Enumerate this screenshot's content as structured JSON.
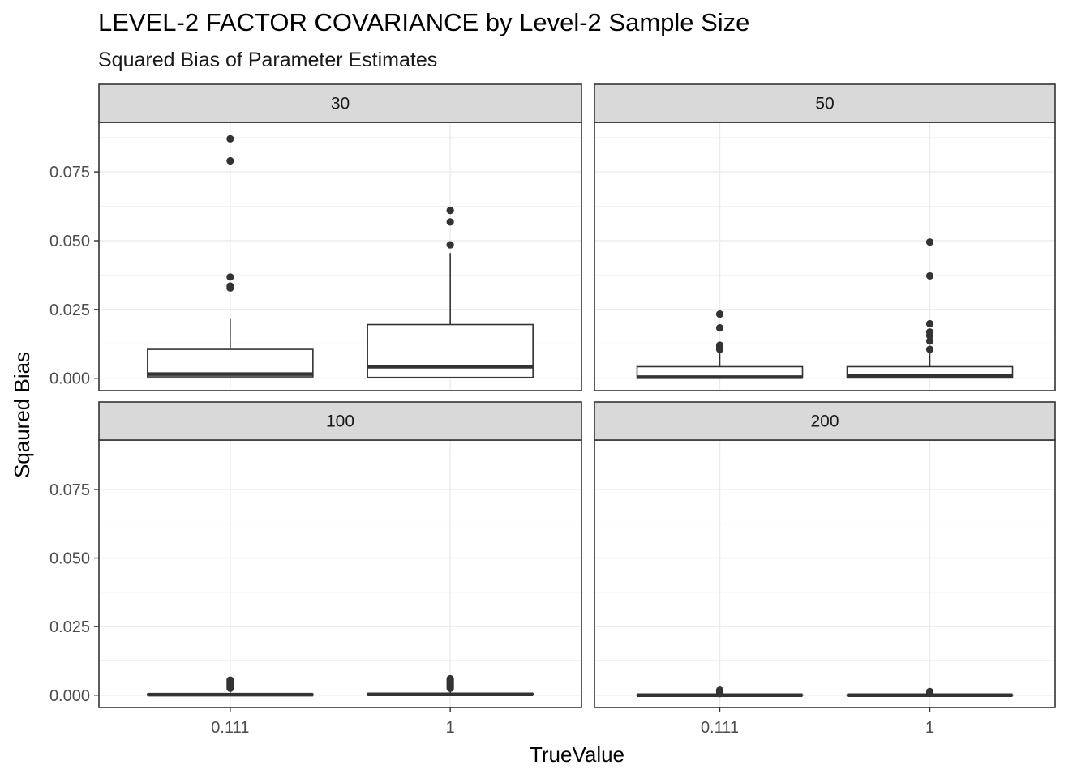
{
  "title": "LEVEL-2 FACTOR COVARIANCE by Level-2 Sample Size",
  "subtitle": "Squared Bias of Parameter Estimates",
  "chart_data": {
    "type": "box",
    "title": "LEVEL-2 FACTOR COVARIANCE by Level-2 Sample Size",
    "subtitle": "Squared Bias of Parameter Estimates",
    "xlabel": "TrueValue",
    "ylabel": "Sqaured Bias",
    "categories": [
      "0.111",
      "1"
    ],
    "ylim": [
      -0.0045,
      0.093
    ],
    "yticks": [
      0.0,
      0.025,
      0.05,
      0.075
    ],
    "ytick_labels": [
      "0.000",
      "0.025",
      "0.050",
      "0.075"
    ],
    "grid": true,
    "facets": [
      {
        "label": "30",
        "boxes": [
          {
            "category": "0.111",
            "min": 0.0,
            "q1": 0.0005,
            "median": 0.0015,
            "q3": 0.0105,
            "max": 0.0215,
            "outliers": [
              0.0328,
              0.0335,
              0.0368,
              0.079,
              0.087
            ]
          },
          {
            "category": "1",
            "min": 0.0,
            "q1": 0.0003,
            "median": 0.0042,
            "q3": 0.0195,
            "max": 0.0455,
            "outliers": [
              0.0485,
              0.0568,
              0.061
            ]
          }
        ]
      },
      {
        "label": "50",
        "boxes": [
          {
            "category": "0.111",
            "min": 0.0,
            "q1": 0.0001,
            "median": 0.0004,
            "q3": 0.0042,
            "max": 0.0098,
            "outliers": [
              0.0105,
              0.011,
              0.0115,
              0.012,
              0.0183,
              0.0233
            ]
          },
          {
            "category": "1",
            "min": 0.0,
            "q1": 0.0001,
            "median": 0.0008,
            "q3": 0.0042,
            "max": 0.0098,
            "outliers": [
              0.0105,
              0.0135,
              0.0155,
              0.0168,
              0.0198,
              0.0372,
              0.0495
            ]
          }
        ]
      },
      {
        "label": "100",
        "boxes": [
          {
            "category": "0.111",
            "min": 0.0,
            "q1": 0.0,
            "median": 0.0002,
            "q3": 0.0004,
            "max": 0.0019,
            "outliers": [
              0.0025,
              0.003,
              0.0035,
              0.004,
              0.0045,
              0.005,
              0.0055
            ]
          },
          {
            "category": "1",
            "min": 0.0,
            "q1": 0.0001,
            "median": 0.0003,
            "q3": 0.0006,
            "max": 0.0019,
            "outliers": [
              0.0025,
              0.003,
              0.0035,
              0.004,
              0.0045,
              0.005,
              0.0055,
              0.006
            ]
          }
        ]
      },
      {
        "label": "200",
        "boxes": [
          {
            "category": "0.111",
            "min": 0.0,
            "q1": 0.0,
            "median": 0.0,
            "q3": 0.0001,
            "max": 0.0004,
            "outliers": [
              0.0006,
              0.0009,
              0.0012,
              0.0015,
              0.0018
            ]
          },
          {
            "category": "1",
            "min": 0.0,
            "q1": 0.0,
            "median": 0.0,
            "q3": 0.0001,
            "max": 0.0004,
            "outliers": [
              0.0007,
              0.001,
              0.0013
            ]
          }
        ]
      }
    ]
  }
}
